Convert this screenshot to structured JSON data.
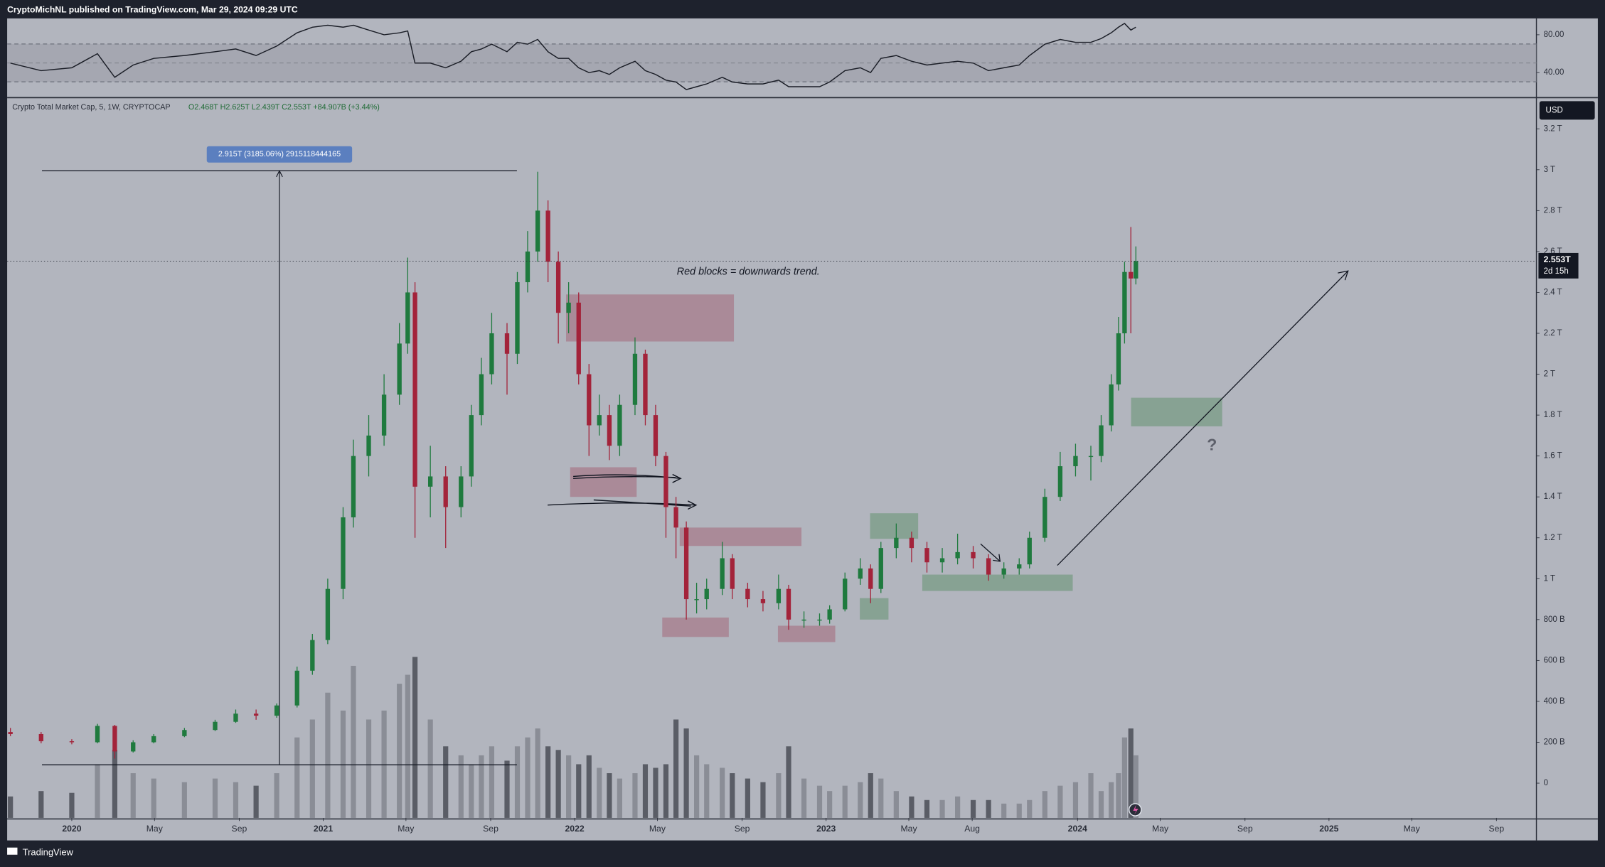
{
  "header": {
    "publisher": "CryptoMichNL published on TradingView.com, Mar 29, 2024 09:29 UTC"
  },
  "footer": {
    "brand": "TradingView"
  },
  "chart_data": {
    "type": "candlestick",
    "symbol_label": "Crypto Total Market Cap, 5, 1W, CRYPTOCAP",
    "ohlc_label": "O2.468T H2.625T L2.439T C2.553T +84.907B (+3.44%)",
    "currency": "USD",
    "last_price_label": "2.553T",
    "countdown": "2d 15h",
    "annotations": {
      "measure": "2.915T (3185.06%) 2915118444165",
      "note": "Red blocks = downwards trend.",
      "question": "?"
    },
    "up_color": "#1f7a3e",
    "down_color": "#a3233a",
    "volume_up_color": "#8a8d96",
    "volume_down_color": "#5a5d66",
    "x": [
      2019.756,
      2019.878,
      2020.0,
      2020.102,
      2020.171,
      2020.244,
      2020.326,
      2020.448,
      2020.57,
      2020.652,
      2020.733,
      2020.815,
      2020.896,
      2020.957,
      2021.018,
      2021.079,
      2021.12,
      2021.181,
      2021.242,
      2021.303,
      2021.336,
      2021.365,
      2021.426,
      2021.487,
      2021.548,
      2021.589,
      2021.629,
      2021.67,
      2021.731,
      2021.772,
      2021.813,
      2021.853,
      2021.894,
      2021.935,
      2021.976,
      2022.016,
      2022.057,
      2022.098,
      2022.138,
      2022.179,
      2022.24,
      2022.281,
      2022.322,
      2022.363,
      2022.403,
      2022.444,
      2022.485,
      2022.525,
      2022.587,
      2022.627,
      2022.688,
      2022.749,
      2022.811,
      2022.851,
      2022.912,
      2022.974,
      2023.014,
      2023.075,
      2023.136,
      2023.177,
      2023.218,
      2023.279,
      2023.34,
      2023.401,
      2023.462,
      2023.523,
      2023.585,
      2023.646,
      2023.707,
      2023.768,
      2023.809,
      2023.87,
      2023.931,
      2023.992,
      2024.053,
      2024.094,
      2024.134,
      2024.163,
      2024.187,
      2024.212,
      2024.232
    ],
    "open": [
      0.25,
      0.24,
      0.205,
      0.2,
      0.28,
      0.155,
      0.2,
      0.23,
      0.26,
      0.3,
      0.34,
      0.33,
      0.38,
      0.55,
      0.7,
      0.95,
      1.3,
      1.6,
      1.7,
      1.9,
      2.15,
      2.4,
      1.45,
      1.5,
      1.35,
      1.5,
      1.8,
      2.0,
      2.2,
      2.1,
      2.45,
      2.6,
      2.8,
      2.55,
      2.3,
      2.35,
      2.0,
      1.75,
      1.8,
      1.65,
      1.85,
      2.1,
      1.8,
      1.6,
      1.35,
      1.25,
      0.9,
      0.9,
      0.95,
      1.1,
      0.95,
      0.9,
      0.88,
      0.95,
      0.8,
      0.8,
      0.8,
      0.85,
      1.0,
      1.05,
      0.95,
      1.15,
      1.2,
      1.15,
      1.08,
      1.1,
      1.13,
      1.1,
      1.02,
      1.05,
      1.07,
      1.2,
      1.4,
      1.55,
      1.6,
      1.6,
      1.75,
      1.95,
      2.2,
      2.5,
      2.468
    ],
    "high": [
      0.27,
      0.25,
      0.215,
      0.29,
      0.285,
      0.21,
      0.24,
      0.27,
      0.31,
      0.36,
      0.36,
      0.39,
      0.57,
      0.73,
      1.0,
      1.35,
      1.68,
      1.8,
      2.0,
      2.25,
      2.57,
      2.45,
      1.65,
      1.55,
      1.55,
      1.85,
      2.08,
      2.3,
      2.25,
      2.5,
      2.7,
      2.99,
      2.85,
      2.6,
      2.45,
      2.4,
      2.05,
      1.9,
      1.85,
      1.9,
      2.18,
      2.12,
      1.85,
      1.62,
      1.4,
      1.28,
      0.98,
      1.0,
      1.18,
      1.12,
      0.98,
      0.94,
      1.02,
      0.97,
      0.84,
      0.83,
      0.87,
      1.03,
      1.1,
      1.07,
      1.18,
      1.27,
      1.23,
      1.18,
      1.15,
      1.22,
      1.16,
      1.12,
      1.08,
      1.1,
      1.23,
      1.44,
      1.62,
      1.66,
      1.65,
      1.8,
      2.0,
      2.28,
      2.55,
      2.72,
      2.625
    ],
    "low": [
      0.23,
      0.195,
      0.19,
      0.195,
      0.12,
      0.15,
      0.195,
      0.225,
      0.255,
      0.295,
      0.31,
      0.32,
      0.37,
      0.53,
      0.68,
      0.9,
      1.25,
      1.5,
      1.65,
      1.85,
      2.1,
      1.2,
      1.3,
      1.15,
      1.3,
      1.45,
      1.75,
      1.95,
      1.9,
      2.05,
      2.4,
      2.55,
      2.45,
      2.15,
      2.2,
      1.95,
      1.6,
      1.7,
      1.58,
      1.6,
      1.8,
      1.75,
      1.55,
      1.2,
      1.1,
      0.8,
      0.83,
      0.85,
      0.92,
      0.9,
      0.86,
      0.84,
      0.85,
      0.75,
      0.76,
      0.77,
      0.78,
      0.84,
      0.97,
      0.88,
      0.93,
      1.1,
      1.08,
      1.03,
      1.03,
      1.07,
      1.05,
      0.99,
      1.0,
      1.02,
      1.05,
      1.18,
      1.38,
      1.5,
      1.48,
      1.57,
      1.72,
      1.92,
      2.15,
      2.2,
      2.439
    ],
    "close": [
      0.24,
      0.205,
      0.2,
      0.28,
      0.155,
      0.2,
      0.23,
      0.26,
      0.3,
      0.34,
      0.33,
      0.38,
      0.55,
      0.7,
      0.95,
      1.3,
      1.6,
      1.7,
      1.9,
      2.15,
      2.4,
      1.45,
      1.5,
      1.35,
      1.5,
      1.8,
      2.0,
      2.2,
      2.1,
      2.45,
      2.6,
      2.8,
      2.55,
      2.3,
      2.35,
      2.0,
      1.75,
      1.8,
      1.65,
      1.85,
      2.1,
      1.8,
      1.6,
      1.35,
      1.25,
      0.9,
      0.9,
      0.95,
      1.1,
      0.95,
      0.9,
      0.88,
      0.95,
      0.8,
      0.8,
      0.8,
      0.85,
      1.0,
      1.05,
      0.95,
      1.15,
      1.2,
      1.15,
      1.08,
      1.1,
      1.13,
      1.1,
      1.02,
      1.05,
      1.07,
      1.2,
      1.4,
      1.55,
      1.6,
      1.6,
      1.75,
      1.95,
      2.2,
      2.5,
      2.468,
      2.553
    ],
    "volume": [
      12,
      15,
      14,
      30,
      38,
      25,
      22,
      20,
      22,
      20,
      18,
      25,
      45,
      55,
      70,
      60,
      85,
      55,
      60,
      75,
      80,
      90,
      55,
      40,
      35,
      30,
      35,
      40,
      32,
      40,
      45,
      50,
      40,
      38,
      35,
      30,
      35,
      28,
      25,
      22,
      25,
      30,
      28,
      30,
      55,
      50,
      35,
      30,
      28,
      25,
      22,
      20,
      25,
      40,
      22,
      18,
      15,
      18,
      20,
      25,
      22,
      15,
      12,
      10,
      10,
      12,
      10,
      10,
      8,
      8,
      10,
      15,
      18,
      20,
      25,
      15,
      20,
      25,
      45,
      50,
      35
    ],
    "volume_ylim": [
      0,
      100
    ],
    "xlim": [
      2019.743,
      2025.825
    ],
    "xticks": [
      2020,
      {
        "value": 2020.329,
        "label": "May"
      },
      {
        "value": 2020.666,
        "label": "Sep"
      },
      2021,
      {
        "value": 2021.329,
        "label": "May"
      },
      {
        "value": 2021.666,
        "label": "Sep"
      },
      2022,
      {
        "value": 2022.329,
        "label": "May"
      },
      {
        "value": 2022.666,
        "label": "Sep"
      },
      2023,
      {
        "value": 2023.329,
        "label": "May"
      },
      {
        "value": 2023.581,
        "label": "Aug"
      },
      2024,
      {
        "value": 2024.329,
        "label": "May"
      },
      {
        "value": 2024.666,
        "label": "Sep"
      },
      2025,
      {
        "value": 2025.329,
        "label": "May"
      },
      {
        "value": 2025.666,
        "label": "Sep"
      }
    ],
    "ylim": [
      -0.17,
      3.35
    ],
    "yticks": [
      0,
      {
        "value": 0.2,
        "label": "200 B"
      },
      {
        "value": 0.4,
        "label": "400 B"
      },
      {
        "value": 0.6,
        "label": "600 B"
      },
      {
        "value": 0.8,
        "label": "800 B"
      },
      {
        "value": 1,
        "label": "1 T"
      },
      {
        "value": 1.2,
        "label": "1.2 T"
      },
      {
        "value": 1.4,
        "label": "1.4 T"
      },
      {
        "value": 1.6,
        "label": "1.6 T"
      },
      {
        "value": 1.8,
        "label": "1.8 T"
      },
      {
        "value": 2,
        "label": "2 T"
      },
      {
        "value": 2.2,
        "label": "2.2 T"
      },
      {
        "value": 2.4,
        "label": "2.4 T"
      },
      {
        "value": 2.6,
        "label": "2.6 T"
      },
      {
        "value": 2.8,
        "label": "2.8 T"
      },
      {
        "value": 3,
        "label": "3 T"
      },
      {
        "value": 3.2,
        "label": "3.2 T"
      }
    ],
    "rsi": {
      "color": "#1a1d26",
      "ylim": [
        14,
        97.3
      ],
      "yticks": [
        {
          "value": 80,
          "label": "80.00"
        },
        {
          "value": 40,
          "label": "40.00"
        }
      ],
      "values": [
        50,
        42,
        45,
        60,
        35,
        48,
        55,
        58,
        62,
        65,
        58,
        68,
        82,
        88,
        90,
        88,
        90,
        85,
        80,
        82,
        84,
        50,
        50,
        45,
        52,
        62,
        65,
        70,
        62,
        72,
        70,
        75,
        62,
        55,
        55,
        45,
        40,
        42,
        38,
        45,
        52,
        42,
        38,
        32,
        30,
        22,
        25,
        28,
        35,
        30,
        28,
        28,
        32,
        25,
        25,
        25,
        30,
        42,
        45,
        40,
        55,
        58,
        52,
        48,
        50,
        52,
        50,
        42,
        45,
        48,
        58,
        70,
        75,
        72,
        72,
        76,
        82,
        88,
        92,
        85,
        88
      ]
    }
  }
}
